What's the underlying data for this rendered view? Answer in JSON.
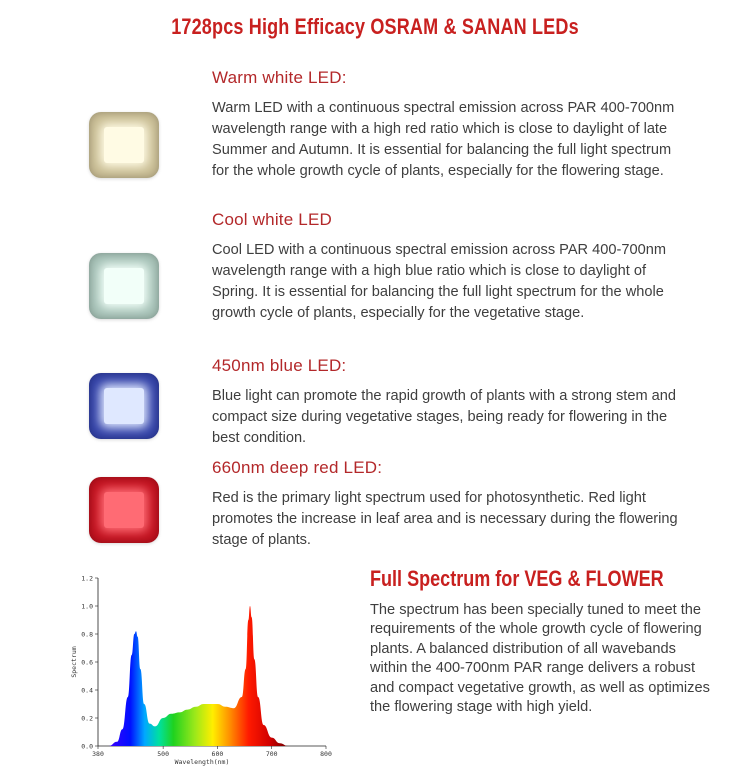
{
  "title": "1728pcs High Efficacy OSRAM & SANAN LEDs",
  "leds": [
    {
      "heading": "Warm white LED:",
      "description": "Warm LED with a continuous spectral emission across PAR 400-700nm wavelength range with a high red ratio which is close to daylight of late Summer and Autumn. It is essential for balancing the full light spectrum for the whole growth cycle of plants, especially for the flowering stage.",
      "frame_color": "#c9bd94",
      "core_color": "#fffbe4"
    },
    {
      "heading": "Cool white LED",
      "description": "Cool LED with a continuous spectral emission across PAR 400-700nm wavelength range with a high blue ratio which is close to daylight of Spring. It is essential for balancing the full light spectrum for the whole growth cycle of plants, especially for the vegetative stage.",
      "frame_color": "#a6c2b7",
      "core_color": "#f2fff9"
    },
    {
      "heading": "450nm blue LED:",
      "description": "Blue light can promote the rapid growth of plants with a strong stem and compact size during vegetative stages, being ready for flowering in the best condition.",
      "frame_color": "#3342a8",
      "core_color": "#dfe8ff"
    },
    {
      "heading": "660nm deep red LED:",
      "description": "Red is the primary light spectrum used for photosynthetic. Red light promotes the increase in leaf area and is necessary during the flowering stage of plants.",
      "frame_color": "#c1121f",
      "core_color": "#ff6b74"
    }
  ],
  "full_spectrum": {
    "heading": "Full Spectrum for VEG & FLOWER",
    "description": "The spectrum has been specially tuned to meet the requirements of the whole growth cycle of flowering plants. A balanced distribution of all wavebands within the 400-700nm PAR range delivers a robust and compact vegetative growth, as well as optimizes the flowering stage with high yield."
  },
  "chart_data": {
    "type": "area",
    "xlabel": "Wavelength(nm)",
    "ylabel": "Spectrum",
    "xlim": [
      380,
      800
    ],
    "ylim": [
      0.0,
      1.2
    ],
    "x_ticks": [
      "380",
      "500",
      "600",
      "700",
      "800"
    ],
    "y_ticks": [
      "0.0",
      "0.2",
      "0.4",
      "0.6",
      "0.8",
      "1.0",
      "1.2"
    ],
    "x": [
      400,
      415,
      425,
      435,
      442,
      447,
      450,
      453,
      458,
      465,
      475,
      485,
      500,
      515,
      530,
      545,
      560,
      575,
      590,
      600,
      615,
      630,
      645,
      652,
      657,
      660,
      663,
      668,
      675,
      685,
      700,
      715,
      730
    ],
    "y": [
      0.0,
      0.03,
      0.12,
      0.35,
      0.65,
      0.8,
      0.82,
      0.78,
      0.55,
      0.3,
      0.16,
      0.14,
      0.2,
      0.23,
      0.24,
      0.26,
      0.28,
      0.3,
      0.3,
      0.3,
      0.28,
      0.27,
      0.35,
      0.55,
      0.9,
      1.0,
      0.92,
      0.62,
      0.35,
      0.15,
      0.06,
      0.02,
      0.0
    ]
  }
}
